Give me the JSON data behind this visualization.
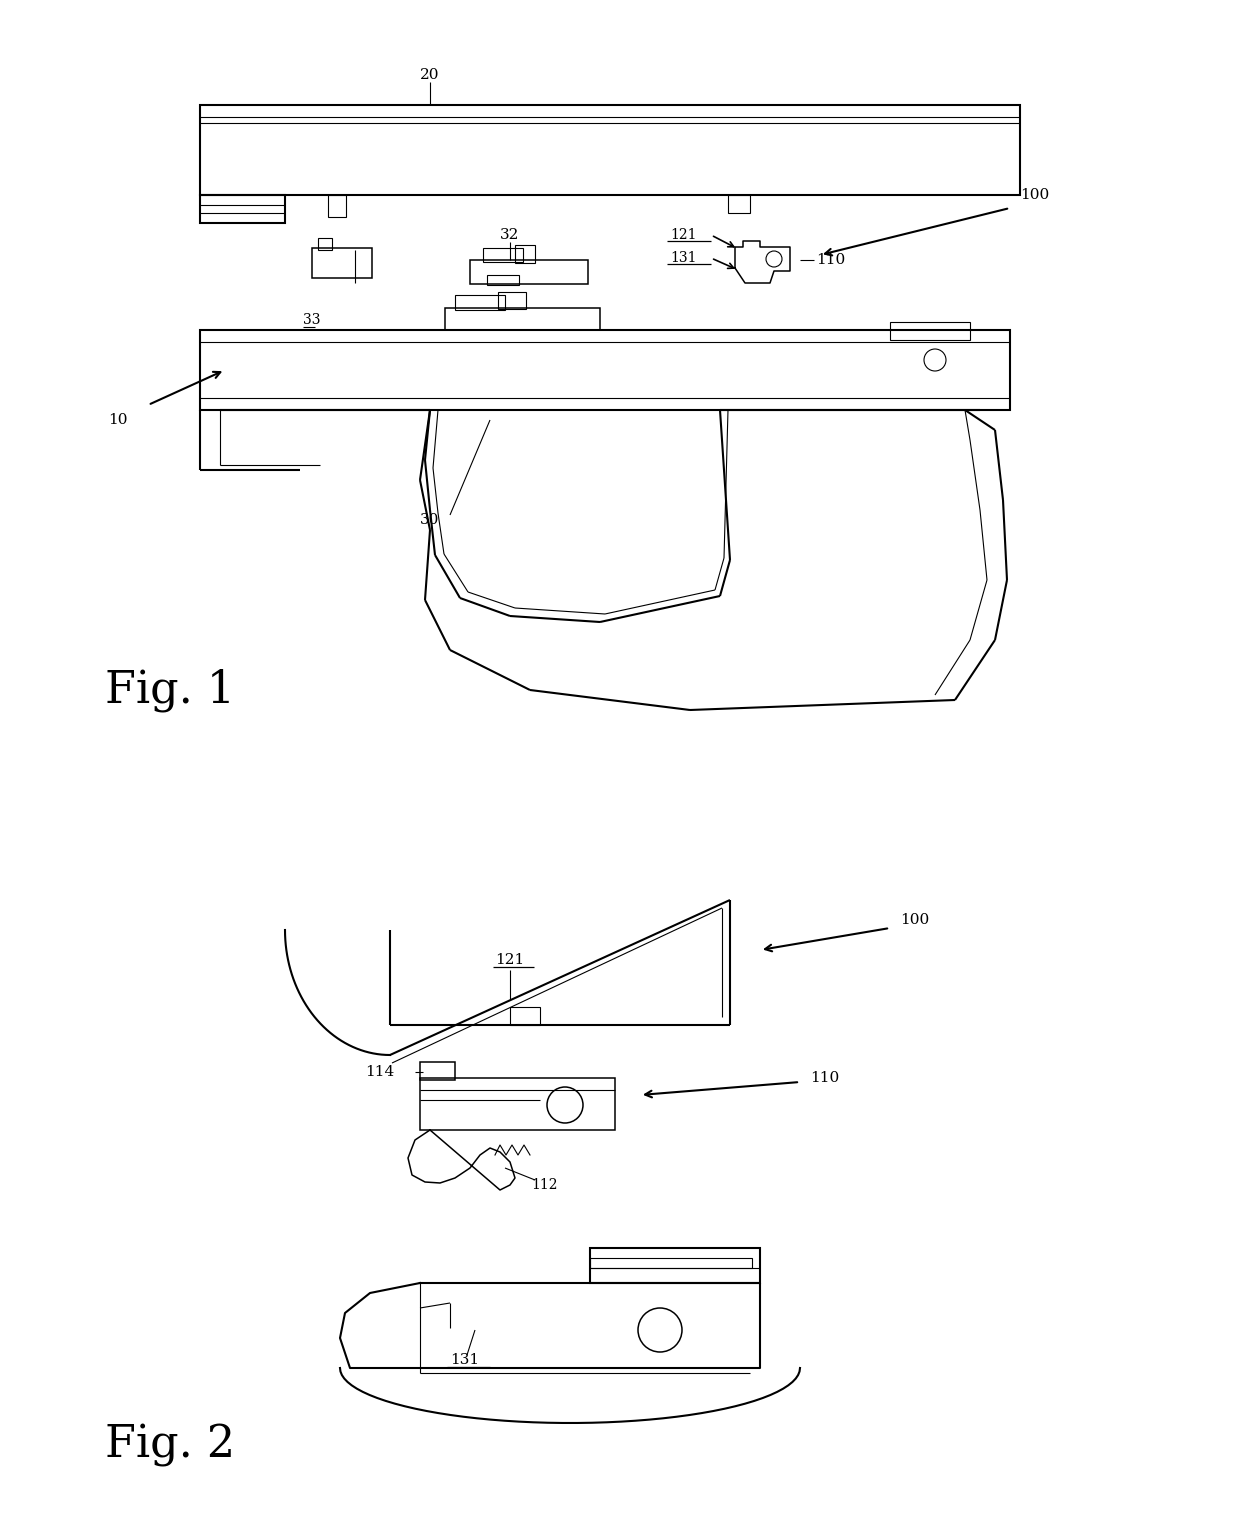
{
  "background_color": "#ffffff",
  "line_color": "#000000",
  "fig_width": 12.4,
  "fig_height": 15.28,
  "fig1_label": "Fig. 1",
  "fig2_label": "Fig. 2",
  "lw_main": 1.5,
  "lw_thin": 0.8,
  "lw_med": 1.1
}
